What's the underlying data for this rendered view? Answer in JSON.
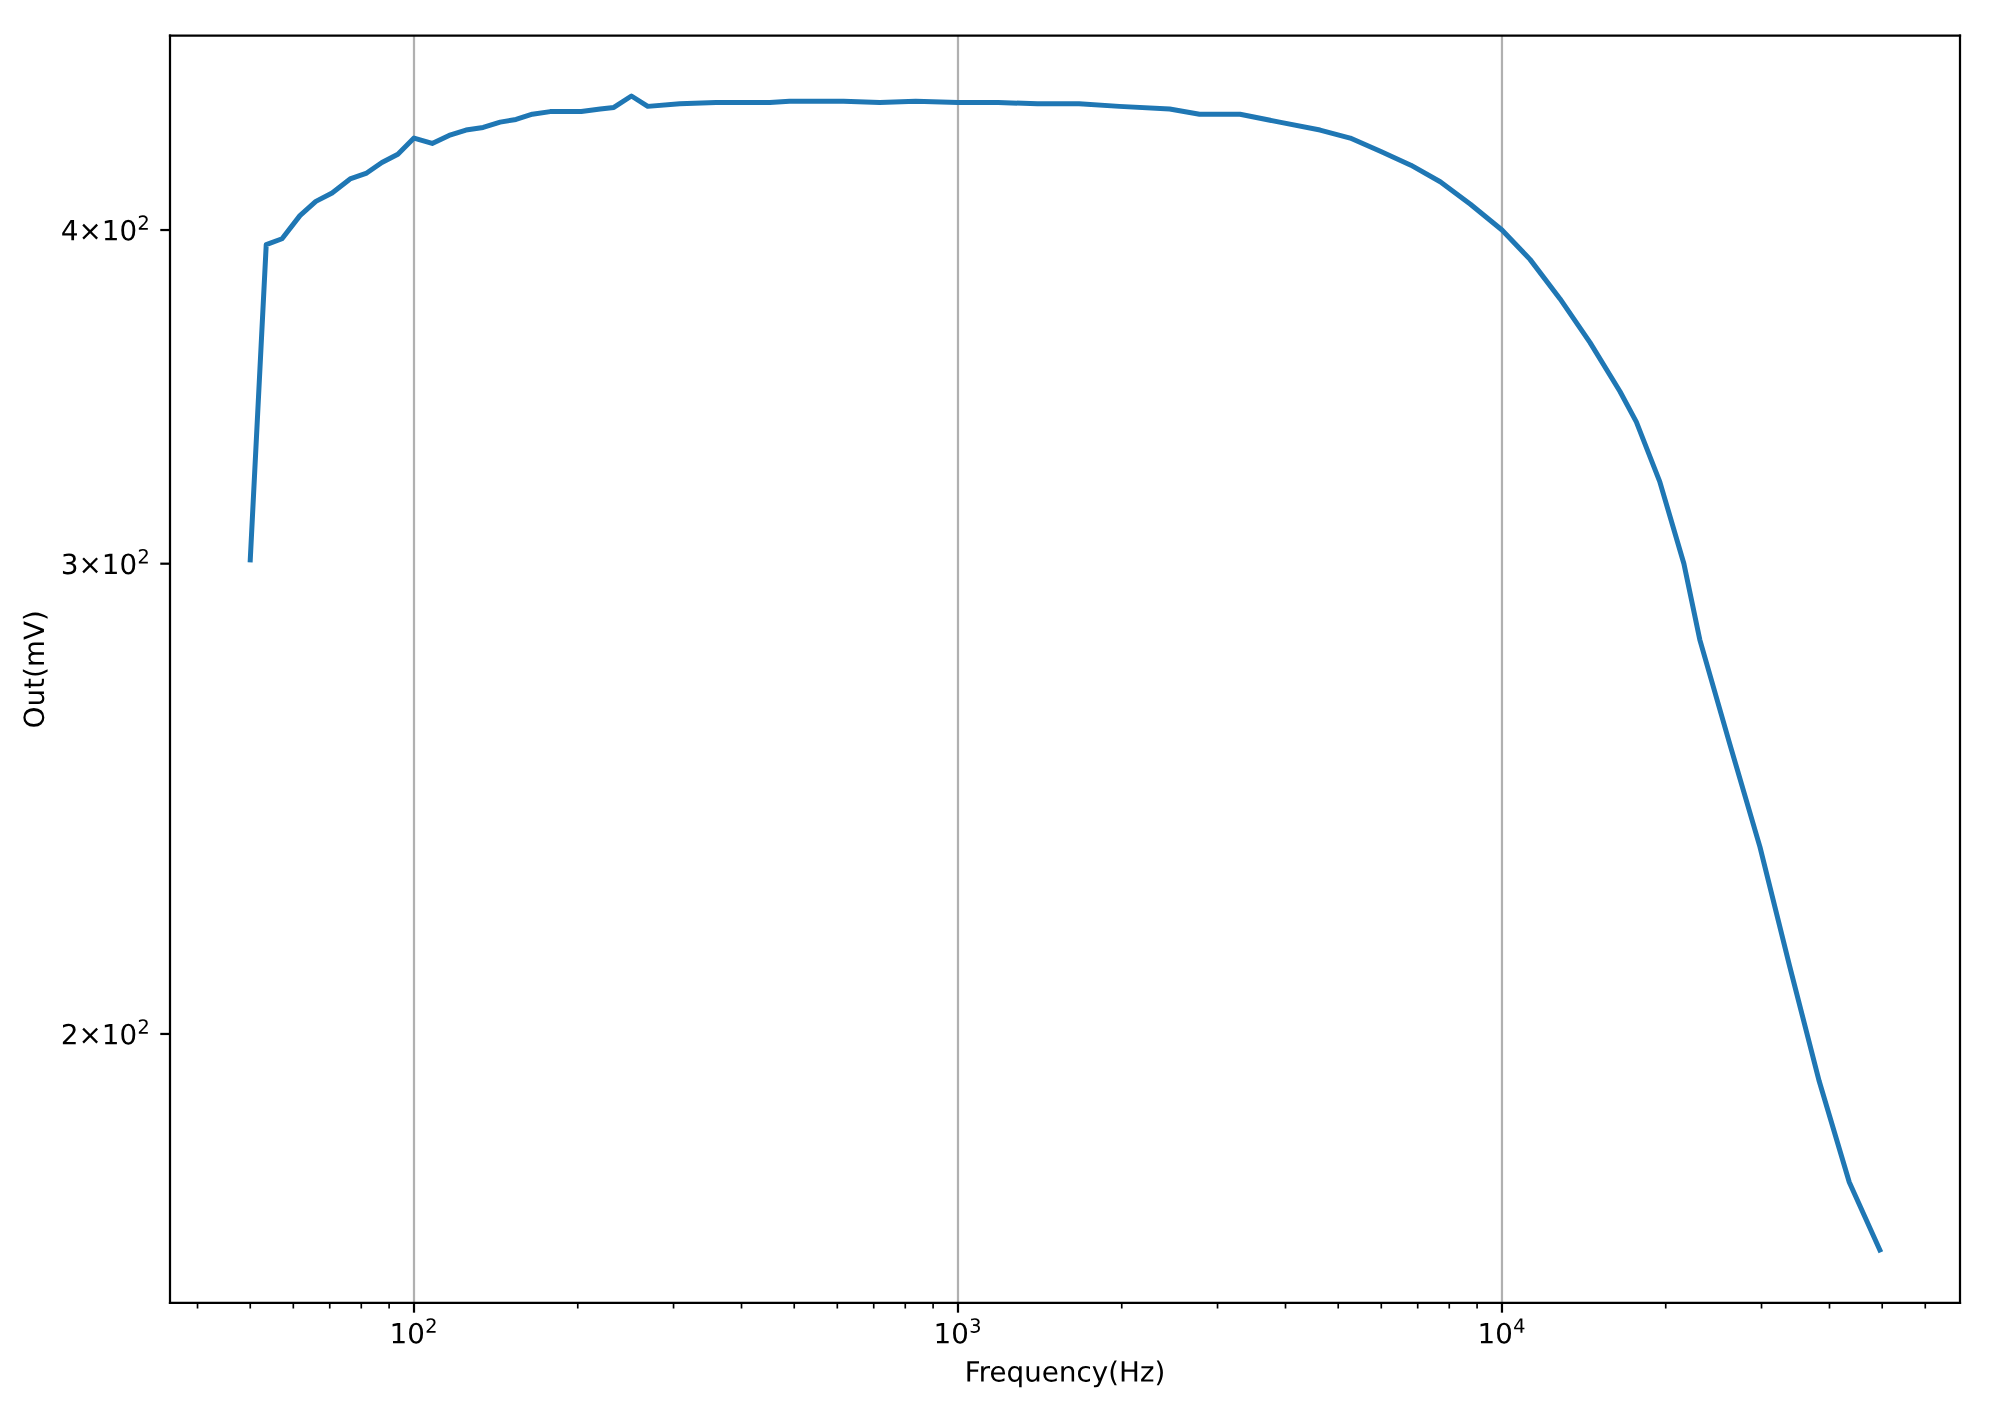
{
  "chart_data": {
    "type": "line",
    "xlabel": "Frequency(Hz)",
    "ylabel": "Out(mV)",
    "log": "xy",
    "grid": "x",
    "marker": "none",
    "line_style": "solid",
    "xlim": [
      35.6,
      69500
    ],
    "ylim": [
      158.6,
      473
    ],
    "xticks": [
      {
        "value": 100,
        "label": "10$^{2}$"
      },
      {
        "value": 1000,
        "label": "10$^{3}$"
      },
      {
        "value": 10000,
        "label": "10$^{4}$"
      }
    ],
    "yticks": [
      {
        "value": 200,
        "label": "2×10$^{2}$"
      },
      {
        "value": 300,
        "label": "3×10$^{2}$"
      },
      {
        "value": 400,
        "label": "4×10$^{2}$"
      }
    ],
    "x": [
      50,
      53.5,
      57.2,
      61.7,
      66,
      70.7,
      76.3,
      81.6,
      87.3,
      93.4,
      100,
      108,
      116,
      124.6,
      134,
      144,
      154,
      165,
      178,
      203,
      220,
      233,
      251,
      269,
      308,
      359,
      414,
      451,
      490,
      520,
      557,
      616,
      718,
      836,
      1000,
      1185,
      1400,
      1670,
      1980,
      2450,
      2780,
      3300,
      3900,
      4630,
      5260,
      5990,
      6800,
      7700,
      8750,
      10000,
      11260,
      12780,
      14520,
      16480,
      17660,
      19500,
      21600,
      23100,
      26200,
      29800,
      33800,
      38300,
      43500,
      49500
    ],
    "series": [
      {
        "color": "#1f77b4",
        "values": [
          301,
          395,
          397,
          405,
          410,
          413,
          418,
          420,
          424,
          427,
          433,
          431,
          434,
          436,
          437,
          439,
          440,
          442,
          443,
          443,
          444,
          444.6,
          449,
          445,
          446,
          446.5,
          446.5,
          446.5,
          447,
          447,
          447,
          447,
          446.5,
          447,
          446.5,
          446.5,
          446,
          446,
          445,
          444,
          442,
          442,
          439,
          436,
          433,
          428,
          423,
          417,
          409,
          400,
          390,
          377,
          363,
          348,
          339,
          322,
          300,
          281,
          257,
          235,
          212,
          192,
          176,
          166
        ]
      }
    ]
  }
}
